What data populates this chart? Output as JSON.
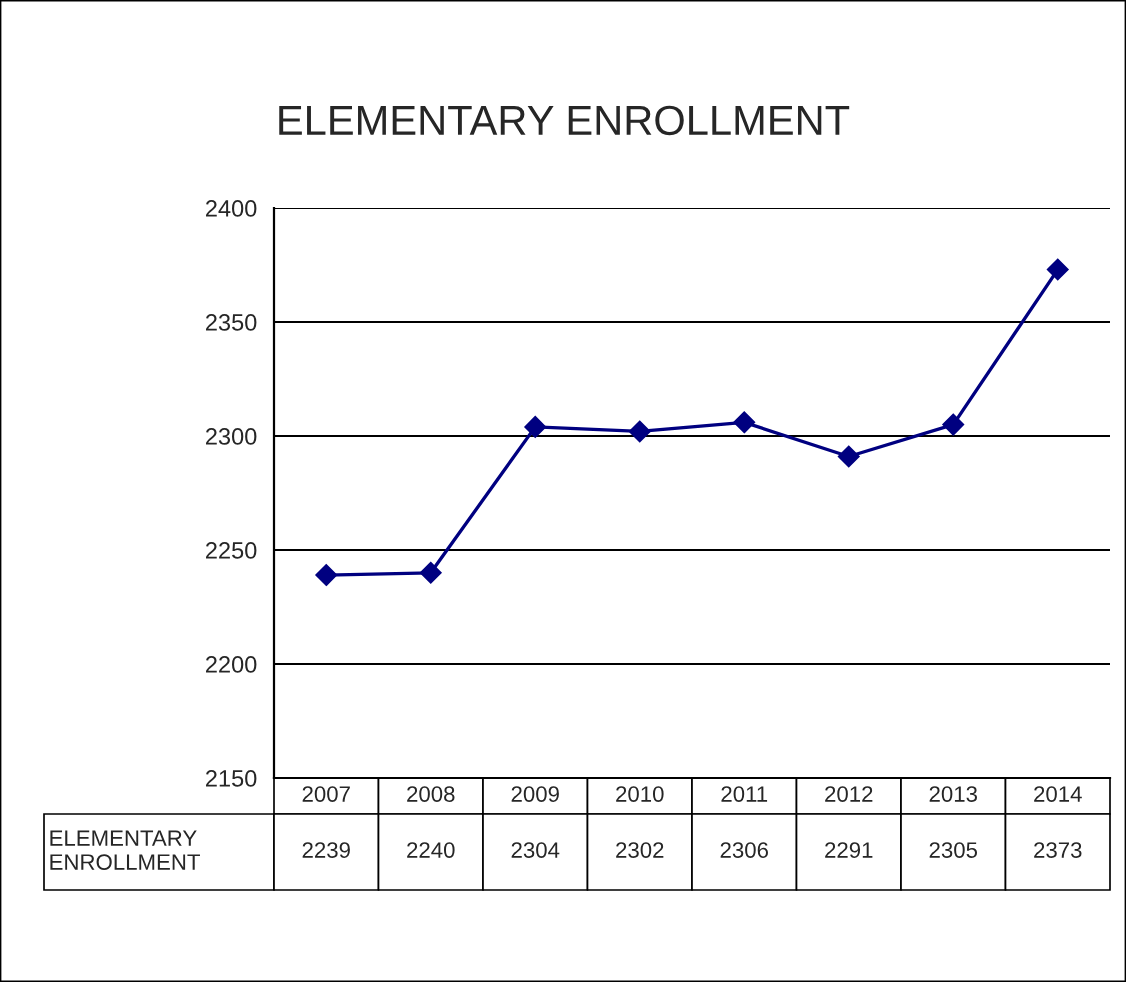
{
  "chart_data": {
    "type": "line",
    "title": "ELEMENTARY ENROLLMENT",
    "categories": [
      "2007",
      "2008",
      "2009",
      "2010",
      "2011",
      "2012",
      "2013",
      "2014"
    ],
    "series": [
      {
        "name": "ELEMENTARY ENROLLMENT",
        "color": "#000080",
        "values": [
          2239,
          2240,
          2304,
          2302,
          2306,
          2291,
          2305,
          2373
        ]
      }
    ],
    "ylim": [
      2150,
      2400
    ],
    "yticks": [
      2150,
      2200,
      2250,
      2300,
      2350,
      2400
    ],
    "grid": "y",
    "marker": "diamond",
    "line_style": "solid",
    "data_labels": true,
    "legend": false
  }
}
